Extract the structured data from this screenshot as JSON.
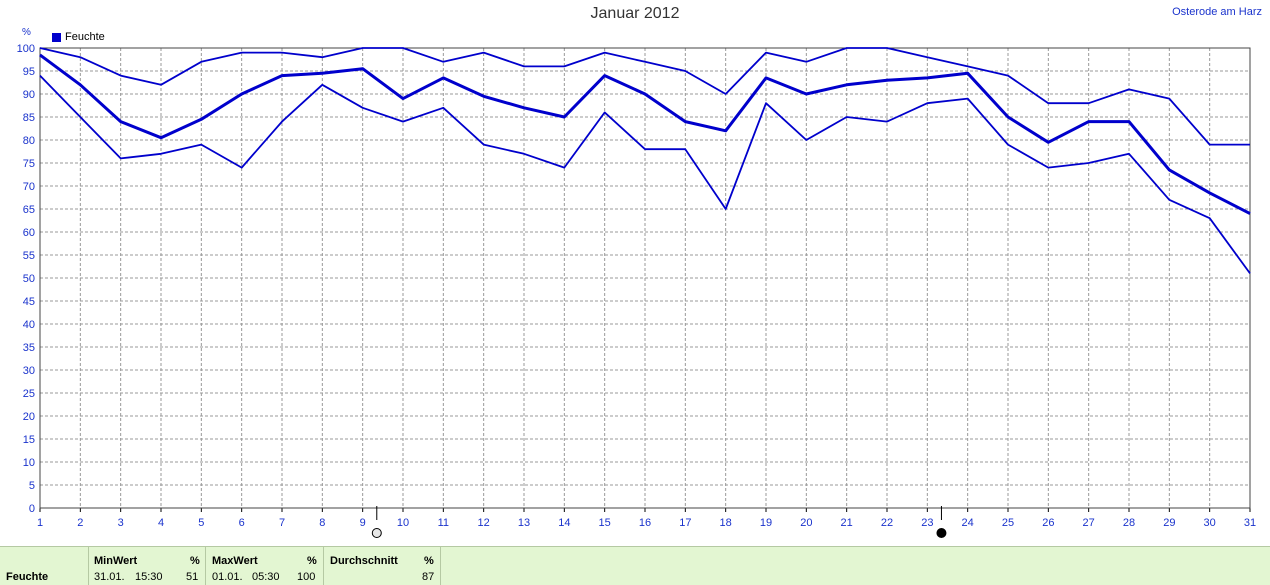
{
  "header": {
    "title": "Januar 2012",
    "station": "Osterode am Harz",
    "legend_label": "Feuchte",
    "y_unit": "%"
  },
  "colors": {
    "series": "#0000cc",
    "grid": "#9a9a9a",
    "axis_text": "#1a33cc",
    "stats_bg": "#e3f6d2"
  },
  "moon_icons": [
    "full-moon-icon",
    "new-moon-icon"
  ],
  "chart_data": {
    "type": "line",
    "x": [
      1,
      2,
      3,
      4,
      5,
      6,
      7,
      8,
      9,
      10,
      11,
      12,
      13,
      14,
      15,
      16,
      17,
      18,
      19,
      20,
      21,
      22,
      23,
      24,
      25,
      26,
      27,
      28,
      29,
      30,
      31
    ],
    "xticks": [
      1,
      2,
      3,
      4,
      5,
      6,
      7,
      8,
      9,
      10,
      11,
      12,
      13,
      14,
      15,
      16,
      17,
      18,
      19,
      20,
      21,
      22,
      23,
      24,
      25,
      26,
      27,
      28,
      29,
      30,
      31
    ],
    "yticks": [
      0,
      5,
      10,
      15,
      20,
      25,
      30,
      35,
      40,
      45,
      50,
      55,
      60,
      65,
      70,
      75,
      80,
      85,
      90,
      95,
      100
    ],
    "xlim": [
      1,
      31
    ],
    "ylim": [
      0,
      100
    ],
    "grid": true,
    "legend": "top-left",
    "moon_markers": [
      {
        "phase": "full",
        "x": 9.35
      },
      {
        "phase": "new",
        "x": 23.35
      }
    ],
    "series": [
      {
        "name": "Feuchte",
        "values": [
          98.5,
          92,
          84,
          80.5,
          84.5,
          90,
          94,
          94.5,
          95.5,
          89,
          93.5,
          89.5,
          87,
          85,
          94,
          90,
          84,
          82,
          93.5,
          90,
          92,
          93,
          93.5,
          94.5,
          85,
          79.5,
          84,
          84,
          73.5,
          68.5,
          64
        ]
      },
      {
        "values": [
          100,
          98,
          94,
          92,
          97,
          99,
          99,
          98,
          100,
          100,
          97,
          99,
          96,
          96,
          99,
          97,
          95,
          90,
          99,
          97,
          100,
          100,
          98,
          96,
          94,
          88,
          88,
          91,
          89,
          79,
          79
        ]
      },
      {
        "values": [
          94,
          85,
          76,
          77,
          79,
          74,
          84,
          92,
          87,
          84,
          87,
          79,
          77,
          74,
          86,
          78,
          78,
          65,
          88,
          80,
          85,
          84,
          88,
          89,
          79,
          74,
          75,
          77,
          67,
          63,
          51
        ]
      }
    ]
  },
  "stats": {
    "row_label": "Feuchte",
    "min": {
      "header": "MinWert",
      "unit": "%",
      "date": "31.01.",
      "time": "15:30",
      "value": "51"
    },
    "max": {
      "header": "MaxWert",
      "unit": "%",
      "date": "01.01.",
      "time": "05:30",
      "value": "100"
    },
    "avg": {
      "header": "Durchschnitt",
      "unit": "%",
      "value": "87"
    }
  }
}
